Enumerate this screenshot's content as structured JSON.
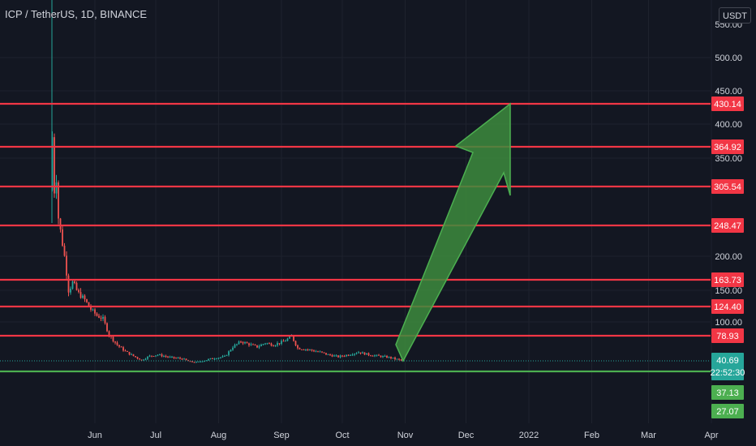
{
  "header": {
    "title": "ICP / TetherUS, 1D, BINANCE",
    "currency": "USDT"
  },
  "colors": {
    "background": "#131722",
    "grid": "#1e222d",
    "resistance": "#f23645",
    "support": "#4caf50",
    "up_candle": "#26a69a",
    "down_candle": "#ef5350",
    "arrow_fill": "#3d8b3d",
    "arrow_stroke": "#4caf50",
    "axis_text": "#d1d4dc"
  },
  "chart_data": {
    "type": "candlestick",
    "symbol": "ICP / TetherUS",
    "interval": "1D",
    "exchange": "BINANCE",
    "yaxis": {
      "ticks": [
        "500.00",
        "450.00",
        "400.00",
        "350.00",
        "200.00",
        "150.00",
        "100.00"
      ],
      "top_clipped_tick": "550.00"
    },
    "xaxis": {
      "ticks": [
        "Jun",
        "Jul",
        "Aug",
        "Sep",
        "Oct",
        "Nov",
        "Dec",
        "2022",
        "Feb",
        "Mar",
        "Apr"
      ]
    },
    "grid": true,
    "resistance_levels": [
      {
        "label": "430.14",
        "value": 430.14
      },
      {
        "label": "364.92",
        "value": 364.92
      },
      {
        "label": "305.54",
        "value": 305.54
      },
      {
        "label": "248.47",
        "value": 248.47
      },
      {
        "label": "163.73",
        "value": 163.73
      },
      {
        "label": "124.40",
        "value": 124.4
      },
      {
        "label": "78.93",
        "value": 78.93
      }
    ],
    "current_price": {
      "label": "40.69",
      "value": 40.69,
      "countdown": "22:52:30"
    },
    "support_levels": [
      {
        "label": "37.13",
        "value": 37.13
      },
      {
        "label": "27.07",
        "value": 27.07
      }
    ],
    "annotation": {
      "type": "arrow",
      "from": {
        "date": "2021-10-31",
        "value": 40.69
      },
      "to": {
        "date": "2021-12-22",
        "value": 430.14
      }
    },
    "price_series": [
      {
        "date": "2021-05-10",
        "value": 300
      },
      {
        "date": "2021-05-11",
        "value": 380
      },
      {
        "date": "2021-05-12",
        "value": 300
      },
      {
        "date": "2021-05-13",
        "value": 320
      },
      {
        "date": "2021-05-14",
        "value": 260
      },
      {
        "date": "2021-05-15",
        "value": 240
      },
      {
        "date": "2021-05-17",
        "value": 200
      },
      {
        "date": "2021-05-19",
        "value": 150
      },
      {
        "date": "2021-05-21",
        "value": 160
      },
      {
        "date": "2021-05-24",
        "value": 145
      },
      {
        "date": "2021-05-27",
        "value": 135
      },
      {
        "date": "2021-05-30",
        "value": 120
      },
      {
        "date": "2021-06-02",
        "value": 110
      },
      {
        "date": "2021-06-05",
        "value": 105
      },
      {
        "date": "2021-06-08",
        "value": 80
      },
      {
        "date": "2021-06-12",
        "value": 65
      },
      {
        "date": "2021-06-16",
        "value": 55
      },
      {
        "date": "2021-06-20",
        "value": 48
      },
      {
        "date": "2021-06-24",
        "value": 42
      },
      {
        "date": "2021-06-28",
        "value": 48
      },
      {
        "date": "2021-07-02",
        "value": 50
      },
      {
        "date": "2021-07-08",
        "value": 46
      },
      {
        "date": "2021-07-14",
        "value": 44
      },
      {
        "date": "2021-07-20",
        "value": 36
      },
      {
        "date": "2021-07-26",
        "value": 42
      },
      {
        "date": "2021-07-30",
        "value": 45
      },
      {
        "date": "2021-08-04",
        "value": 47
      },
      {
        "date": "2021-08-08",
        "value": 62
      },
      {
        "date": "2021-08-12",
        "value": 70
      },
      {
        "date": "2021-08-16",
        "value": 66
      },
      {
        "date": "2021-08-20",
        "value": 62
      },
      {
        "date": "2021-08-24",
        "value": 68
      },
      {
        "date": "2021-08-28",
        "value": 65
      },
      {
        "date": "2021-09-02",
        "value": 70
      },
      {
        "date": "2021-09-06",
        "value": 78
      },
      {
        "date": "2021-09-09",
        "value": 60
      },
      {
        "date": "2021-09-14",
        "value": 58
      },
      {
        "date": "2021-09-20",
        "value": 54
      },
      {
        "date": "2021-09-24",
        "value": 50
      },
      {
        "date": "2021-09-29",
        "value": 47
      },
      {
        "date": "2021-10-04",
        "value": 50
      },
      {
        "date": "2021-10-09",
        "value": 54
      },
      {
        "date": "2021-10-14",
        "value": 50
      },
      {
        "date": "2021-10-19",
        "value": 48
      },
      {
        "date": "2021-10-24",
        "value": 46
      },
      {
        "date": "2021-10-31",
        "value": 40.69
      }
    ]
  }
}
